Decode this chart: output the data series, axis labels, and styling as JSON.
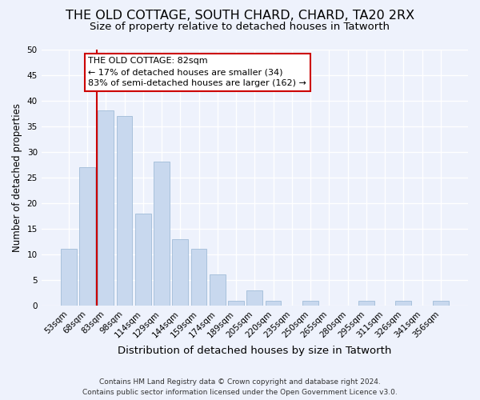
{
  "title": "THE OLD COTTAGE, SOUTH CHARD, CHARD, TA20 2RX",
  "subtitle": "Size of property relative to detached houses in Tatworth",
  "xlabel": "Distribution of detached houses by size in Tatworth",
  "ylabel": "Number of detached properties",
  "bar_labels": [
    "53sqm",
    "68sqm",
    "83sqm",
    "98sqm",
    "114sqm",
    "129sqm",
    "144sqm",
    "159sqm",
    "174sqm",
    "189sqm",
    "205sqm",
    "220sqm",
    "235sqm",
    "250sqm",
    "265sqm",
    "280sqm",
    "295sqm",
    "311sqm",
    "326sqm",
    "341sqm",
    "356sqm"
  ],
  "bar_values": [
    11,
    27,
    38,
    37,
    18,
    28,
    13,
    11,
    6,
    1,
    3,
    1,
    0,
    1,
    0,
    0,
    1,
    0,
    1,
    0,
    1
  ],
  "bar_color": "#c8d8ee",
  "bar_edge_color": "#a0bcd8",
  "vline_index": 2,
  "vline_color": "#cc0000",
  "ylim": [
    0,
    50
  ],
  "yticks": [
    0,
    5,
    10,
    15,
    20,
    25,
    30,
    35,
    40,
    45,
    50
  ],
  "annotation_title": "THE OLD COTTAGE: 82sqm",
  "annotation_line1": "← 17% of detached houses are smaller (34)",
  "annotation_line2": "83% of semi-detached houses are larger (162) →",
  "annotation_box_facecolor": "#ffffff",
  "annotation_box_edgecolor": "#cc0000",
  "footer_line1": "Contains HM Land Registry data © Crown copyright and database right 2024.",
  "footer_line2": "Contains public sector information licensed under the Open Government Licence v3.0.",
  "background_color": "#eef2fc",
  "grid_color": "#ffffff",
  "title_fontsize": 11.5,
  "subtitle_fontsize": 9.5,
  "ylabel_fontsize": 8.5,
  "xlabel_fontsize": 9.5,
  "tick_fontsize": 7.5,
  "annotation_fontsize": 8.0,
  "footer_fontsize": 6.5
}
